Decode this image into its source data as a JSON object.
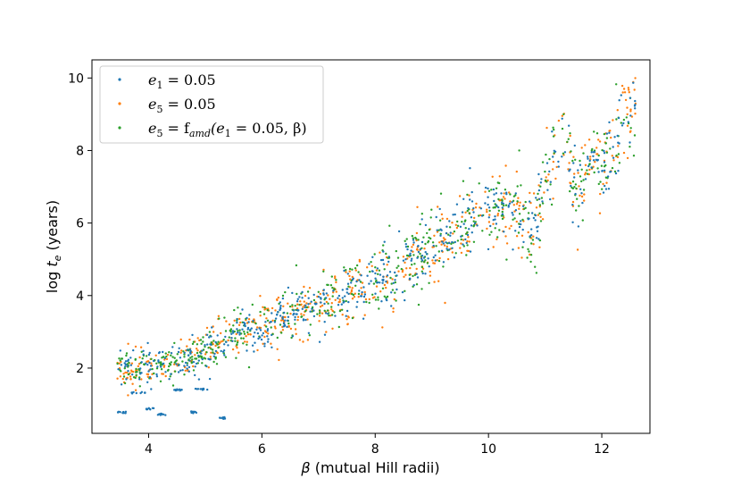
{
  "chart_data": {
    "type": "scatter",
    "xlabel_symbol": "β",
    "xlabel_text": " (mutual Hill radii)",
    "ylabel_prefix": "log ",
    "ylabel_symbol": "t",
    "ylabel_sub": "e",
    "ylabel_suffix": " (years)",
    "xlim": [
      3.0,
      12.85
    ],
    "ylim": [
      0.2,
      10.5
    ],
    "xticks": [
      4,
      6,
      8,
      10,
      12
    ],
    "yticks": [
      2,
      4,
      6,
      8,
      10
    ],
    "legend_position": "upper-left",
    "series": [
      {
        "name": "e1 = 0.05",
        "legend": {
          "var": "e",
          "sub": "1",
          "rest": " = 0.05"
        },
        "color": "#1f77b4"
      },
      {
        "name": "e5 = 0.05",
        "legend": {
          "var": "e",
          "sub": "5",
          "rest": " = 0.05"
        },
        "color": "#ff7f0e"
      },
      {
        "name": "e5 = famd(e1 = 0.05, β)",
        "legend": {
          "var": "e",
          "sub": "5",
          "rest": " = f",
          "sub2": "amd",
          "rest2": "(e",
          "sub3": "1",
          "rest3": " = 0.05, β)"
        },
        "color": "#2ca02c"
      }
    ],
    "trend_points": [
      [
        3.5,
        1.9
      ],
      [
        4.0,
        2.1
      ],
      [
        4.5,
        2.2
      ],
      [
        5.0,
        2.5
      ],
      [
        5.5,
        2.9
      ],
      [
        6.0,
        3.15
      ],
      [
        6.5,
        3.45
      ],
      [
        7.0,
        3.8
      ],
      [
        7.5,
        4.05
      ],
      [
        8.0,
        4.35
      ],
      [
        8.5,
        4.85
      ],
      [
        9.0,
        5.3
      ],
      [
        9.5,
        5.8
      ],
      [
        10.0,
        6.3
      ],
      [
        10.5,
        6.5
      ],
      [
        10.8,
        5.5
      ],
      [
        11.0,
        7.2
      ],
      [
        11.3,
        8.3
      ],
      [
        11.6,
        6.8
      ],
      [
        11.8,
        7.8
      ],
      [
        12.0,
        7.5
      ],
      [
        12.3,
        8.6
      ],
      [
        12.6,
        9.2
      ]
    ],
    "low_clusters": [
      {
        "x": [
          3.45,
          3.6
        ],
        "y": 0.78
      },
      {
        "x": [
          3.7,
          3.95
        ],
        "y": 1.32
      },
      {
        "x": [
          3.95,
          4.1
        ],
        "y": 0.88
      },
      {
        "x": [
          4.15,
          4.3
        ],
        "y": 0.72
      },
      {
        "x": [
          4.8,
          5.05
        ],
        "y": 1.42
      },
      {
        "x": [
          4.75,
          4.85
        ],
        "y": 0.78
      },
      {
        "x": [
          5.25,
          5.35
        ],
        "y": 0.62
      },
      {
        "x": [
          4.45,
          4.6
        ],
        "y": 1.4
      }
    ]
  }
}
